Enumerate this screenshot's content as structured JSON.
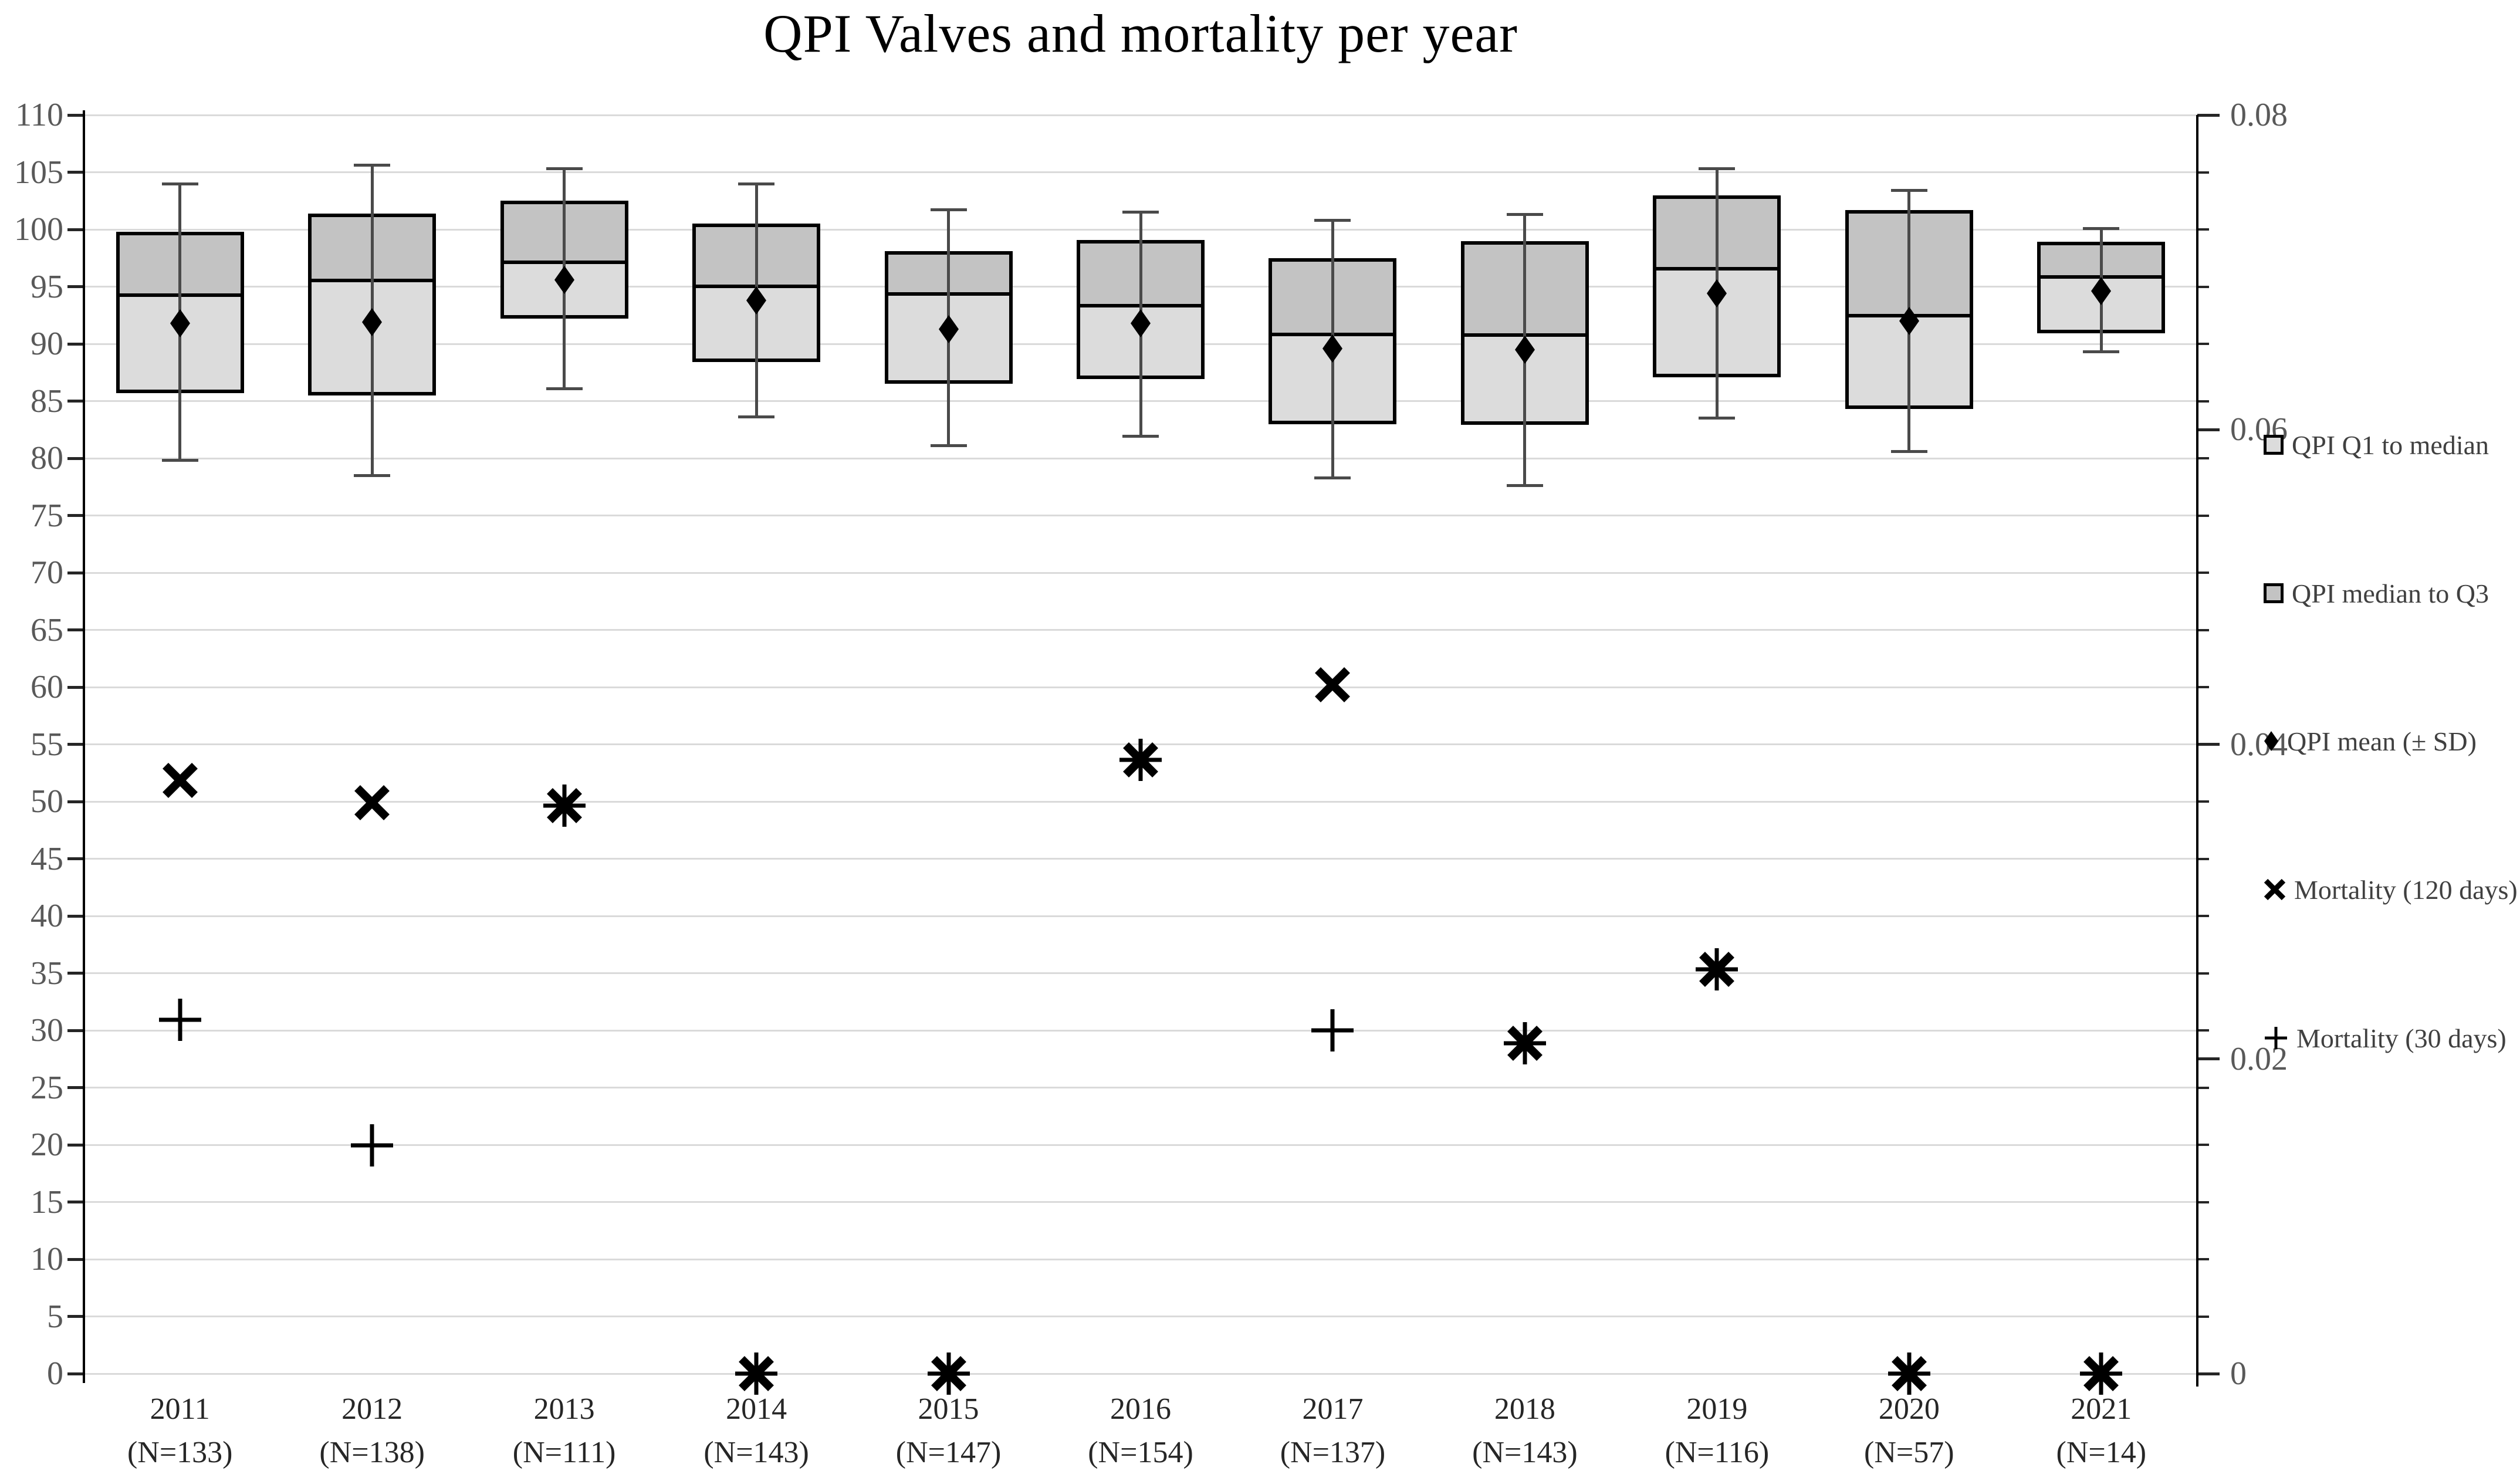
{
  "title": "QPI Valves and mortality per year",
  "left_axis": {
    "min": 0,
    "max": 110,
    "step": 5,
    "labels": [
      "110",
      "105",
      "100",
      "95",
      "90",
      "85",
      "80",
      "75",
      "70",
      "65",
      "60",
      "55",
      "50",
      "45",
      "40",
      "35",
      "30",
      "25",
      "20",
      "15",
      "10",
      "5",
      "0"
    ]
  },
  "right_axis": {
    "min": 0,
    "max": 0.08,
    "ticks": [
      {
        "label": "0.08",
        "value": 0.08
      },
      {
        "label": "0.06",
        "value": 0.06
      },
      {
        "label": "0.04",
        "value": 0.04
      },
      {
        "label": "0.02",
        "value": 0.02
      },
      {
        "label": "0",
        "value": 0
      }
    ]
  },
  "legend": {
    "items": [
      {
        "label": "QPI Q1 to median",
        "marker": "light-square"
      },
      {
        "label": "QPI median to Q3",
        "marker": "dark-square"
      },
      {
        "label": "QPI mean (± SD)",
        "marker": "diamond"
      },
      {
        "label": "Mortality (120 days)",
        "marker": "x"
      },
      {
        "label": "Mortality (30 days)",
        "marker": "plus"
      }
    ]
  },
  "chart_data": {
    "type": "box-whisker with dual-axis scatter markers",
    "categories": [
      "2011",
      "2012",
      "2013",
      "2014",
      "2015",
      "2016",
      "2017",
      "2018",
      "2019",
      "2020",
      "2021"
    ],
    "n_labels": [
      "(N=133)",
      "(N=138)",
      "(N=111)",
      "(N=143)",
      "(N=147)",
      "(N=154)",
      "(N=137)",
      "(N=143)",
      "(N=116)",
      "(N=57)",
      "(N=14)"
    ],
    "xlabel": "",
    "ylabel_left": "",
    "ylabel_right": "",
    "ylim_left": [
      0,
      110
    ],
    "ylim_right": [
      0,
      0.08
    ],
    "grid": "horizontal, every 5 units of left axis",
    "legend_position": "right, outside plot",
    "box_series": {
      "name": "QPI (left axis)",
      "axis": "left",
      "years": [
        {
          "year": "2011",
          "whisker_low": 79.8,
          "q1": 85.7,
          "mean": 91.8,
          "median": 94.4,
          "q3": 99.8,
          "whisker_high": 104.0
        },
        {
          "year": "2012",
          "whisker_low": 78.5,
          "q1": 85.5,
          "mean": 91.9,
          "median": 95.7,
          "q3": 101.4,
          "whisker_high": 105.6
        },
        {
          "year": "2013",
          "whisker_low": 86.1,
          "q1": 92.2,
          "mean": 95.6,
          "median": 97.3,
          "q3": 102.5,
          "whisker_high": 105.3
        },
        {
          "year": "2014",
          "whisker_low": 83.6,
          "q1": 88.4,
          "mean": 93.8,
          "median": 95.2,
          "q3": 100.5,
          "whisker_high": 104.0
        },
        {
          "year": "2015",
          "whisker_low": 81.1,
          "q1": 86.5,
          "mean": 91.3,
          "median": 94.5,
          "q3": 98.1,
          "whisker_high": 101.7
        },
        {
          "year": "2016",
          "whisker_low": 81.9,
          "q1": 86.9,
          "mean": 91.8,
          "median": 93.5,
          "q3": 99.1,
          "whisker_high": 101.5
        },
        {
          "year": "2017",
          "whisker_low": 78.3,
          "q1": 83.0,
          "mean": 89.6,
          "median": 91.0,
          "q3": 97.5,
          "whisker_high": 100.8
        },
        {
          "year": "2018",
          "whisker_low": 77.6,
          "q1": 82.9,
          "mean": 89.5,
          "median": 90.9,
          "q3": 99.0,
          "whisker_high": 101.3
        },
        {
          "year": "2019",
          "whisker_low": 83.5,
          "q1": 87.1,
          "mean": 94.4,
          "median": 96.7,
          "q3": 103.0,
          "whisker_high": 105.3
        },
        {
          "year": "2020",
          "whisker_low": 80.6,
          "q1": 84.3,
          "mean": 92.0,
          "median": 92.6,
          "q3": 101.7,
          "whisker_high": 103.4
        },
        {
          "year": "2021",
          "whisker_low": 89.3,
          "q1": 90.9,
          "mean": 94.6,
          "median": 96.0,
          "q3": 98.9,
          "whisker_high": 100.1
        }
      ]
    },
    "series": [
      {
        "name": "Mortality (120 days)",
        "axis": "right",
        "marker": "x",
        "values": [
          0.0377,
          0.0363,
          0.0361,
          0,
          0,
          0.039,
          0.0438,
          0.021,
          0.0257,
          0,
          0
        ]
      },
      {
        "name": "Mortality (30 days)",
        "axis": "right",
        "marker": "plus",
        "values": [
          0.0225,
          0.0145,
          0.0361,
          0,
          0,
          0.039,
          0.0218,
          0.021,
          0.0257,
          0,
          0
        ]
      }
    ]
  },
  "colors": {
    "box_light": "#dcdcdc",
    "box_dark": "#c3c3c3",
    "box_border": "#000000",
    "whisker": "#4a4a4a",
    "marker": "#000000",
    "gridline": "#dadada",
    "tick_label": "#595959",
    "year_label": "#262626",
    "legend_text": "#404040"
  }
}
